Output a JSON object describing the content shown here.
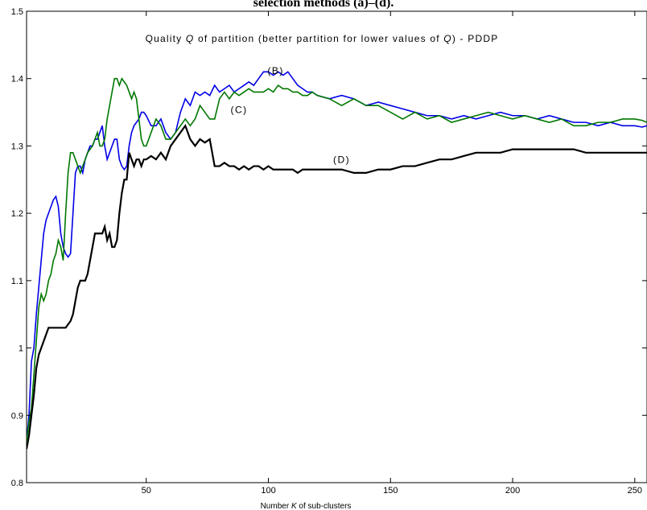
{
  "caption": "selection methods (a)–(d).",
  "chart_data": {
    "type": "line",
    "title_parts": [
      "Quality ",
      "Q",
      " of partition (better partition for lower values of ",
      "Q",
      ") - PDDP"
    ],
    "xlabel_parts": [
      "Number ",
      "K",
      " of sub-clusters"
    ],
    "ylabel": "",
    "xlim": [
      1,
      255
    ],
    "ylim": [
      0.8,
      1.5
    ],
    "xticks": [
      50,
      100,
      150,
      200,
      250
    ],
    "yticks": [
      0.8,
      0.9,
      1,
      1.1,
      1.2,
      1.3,
      1.4,
      1.5
    ],
    "ytick_labels": [
      "0.8",
      "0.9",
      "1",
      "1.1",
      "1.2",
      "1.3",
      "1.4",
      "1.5"
    ],
    "grid": false,
    "series": [
      {
        "name": "(B)",
        "color": "#0000e6",
        "width": 1.6,
        "x": [
          1,
          2,
          3,
          4,
          5,
          6,
          7,
          8,
          9,
          10,
          11,
          12,
          13,
          14,
          15,
          16,
          17,
          18,
          19,
          20,
          21,
          22,
          23,
          24,
          25,
          26,
          27,
          28,
          29,
          30,
          31,
          32,
          33,
          34,
          35,
          36,
          37,
          38,
          39,
          40,
          41,
          42,
          43,
          44,
          45,
          46,
          47,
          48,
          49,
          50,
          52,
          54,
          56,
          58,
          60,
          62,
          64,
          66,
          68,
          70,
          72,
          74,
          76,
          78,
          80,
          82,
          84,
          86,
          88,
          90,
          92,
          94,
          96,
          98,
          100,
          102,
          104,
          106,
          108,
          110,
          112,
          114,
          116,
          118,
          120,
          125,
          130,
          135,
          140,
          145,
          150,
          155,
          160,
          165,
          170,
          175,
          180,
          185,
          190,
          195,
          200,
          205,
          210,
          215,
          220,
          225,
          230,
          235,
          240,
          245,
          250,
          253,
          255
        ],
        "y": [
          0.86,
          0.9,
          0.98,
          1.0,
          1.05,
          1.09,
          1.13,
          1.17,
          1.19,
          1.2,
          1.21,
          1.22,
          1.225,
          1.21,
          1.17,
          1.15,
          1.14,
          1.135,
          1.14,
          1.2,
          1.26,
          1.27,
          1.27,
          1.26,
          1.28,
          1.29,
          1.3,
          1.3,
          1.31,
          1.31,
          1.32,
          1.33,
          1.3,
          1.28,
          1.29,
          1.3,
          1.31,
          1.31,
          1.28,
          1.27,
          1.265,
          1.27,
          1.3,
          1.32,
          1.33,
          1.335,
          1.34,
          1.35,
          1.35,
          1.345,
          1.33,
          1.33,
          1.34,
          1.32,
          1.31,
          1.32,
          1.35,
          1.37,
          1.36,
          1.38,
          1.375,
          1.38,
          1.375,
          1.39,
          1.38,
          1.385,
          1.39,
          1.38,
          1.385,
          1.39,
          1.395,
          1.39,
          1.4,
          1.41,
          1.41,
          1.405,
          1.41,
          1.405,
          1.41,
          1.4,
          1.39,
          1.385,
          1.38,
          1.38,
          1.375,
          1.37,
          1.375,
          1.37,
          1.36,
          1.365,
          1.36,
          1.355,
          1.35,
          1.345,
          1.345,
          1.34,
          1.345,
          1.34,
          1.345,
          1.35,
          1.345,
          1.345,
          1.34,
          1.345,
          1.34,
          1.335,
          1.335,
          1.33,
          1.335,
          1.33,
          1.33,
          1.328,
          1.33
        ]
      },
      {
        "name": "(C)",
        "color": "#007800",
        "width": 1.6,
        "x": [
          1,
          2,
          3,
          4,
          5,
          6,
          7,
          8,
          9,
          10,
          11,
          12,
          13,
          14,
          15,
          16,
          17,
          18,
          19,
          20,
          21,
          22,
          23,
          24,
          25,
          26,
          27,
          28,
          29,
          30,
          31,
          32,
          33,
          34,
          35,
          36,
          37,
          38,
          39,
          40,
          41,
          42,
          43,
          44,
          45,
          46,
          47,
          48,
          49,
          50,
          52,
          54,
          56,
          58,
          60,
          62,
          64,
          66,
          68,
          70,
          72,
          74,
          76,
          78,
          80,
          82,
          84,
          86,
          88,
          90,
          92,
          94,
          96,
          98,
          100,
          102,
          104,
          106,
          108,
          110,
          112,
          114,
          116,
          118,
          120,
          125,
          130,
          135,
          140,
          145,
          150,
          155,
          160,
          165,
          170,
          175,
          180,
          185,
          190,
          195,
          200,
          205,
          210,
          215,
          220,
          225,
          230,
          235,
          240,
          245,
          250,
          253,
          255
        ],
        "y": [
          0.86,
          0.89,
          0.91,
          0.96,
          1.01,
          1.06,
          1.08,
          1.07,
          1.08,
          1.1,
          1.11,
          1.13,
          1.14,
          1.16,
          1.15,
          1.13,
          1.2,
          1.26,
          1.29,
          1.29,
          1.28,
          1.27,
          1.26,
          1.27,
          1.28,
          1.29,
          1.295,
          1.3,
          1.31,
          1.32,
          1.3,
          1.3,
          1.31,
          1.34,
          1.36,
          1.38,
          1.4,
          1.4,
          1.39,
          1.4,
          1.395,
          1.39,
          1.38,
          1.37,
          1.38,
          1.37,
          1.34,
          1.31,
          1.3,
          1.3,
          1.32,
          1.34,
          1.33,
          1.31,
          1.31,
          1.32,
          1.33,
          1.34,
          1.33,
          1.34,
          1.36,
          1.35,
          1.34,
          1.34,
          1.37,
          1.38,
          1.37,
          1.38,
          1.375,
          1.38,
          1.385,
          1.38,
          1.38,
          1.38,
          1.385,
          1.38,
          1.39,
          1.385,
          1.385,
          1.38,
          1.38,
          1.375,
          1.375,
          1.38,
          1.375,
          1.37,
          1.36,
          1.37,
          1.36,
          1.36,
          1.35,
          1.34,
          1.35,
          1.34,
          1.345,
          1.335,
          1.34,
          1.345,
          1.35,
          1.345,
          1.34,
          1.345,
          1.34,
          1.335,
          1.34,
          1.33,
          1.33,
          1.335,
          1.335,
          1.34,
          1.34,
          1.338,
          1.335
        ]
      },
      {
        "name": "(D)",
        "color": "#000000",
        "width": 2.2,
        "x": [
          1,
          2,
          3,
          4,
          5,
          6,
          7,
          8,
          9,
          10,
          11,
          12,
          13,
          14,
          15,
          16,
          17,
          18,
          19,
          20,
          21,
          22,
          23,
          24,
          25,
          26,
          27,
          28,
          29,
          30,
          31,
          32,
          33,
          34,
          35,
          36,
          37,
          38,
          39,
          40,
          41,
          42,
          43,
          44,
          45,
          46,
          47,
          48,
          49,
          50,
          52,
          54,
          56,
          58,
          60,
          62,
          64,
          66,
          68,
          70,
          72,
          74,
          76,
          78,
          80,
          82,
          84,
          86,
          88,
          90,
          92,
          94,
          96,
          98,
          100,
          102,
          104,
          106,
          108,
          110,
          112,
          114,
          116,
          118,
          120,
          125,
          130,
          135,
          140,
          145,
          150,
          155,
          160,
          165,
          170,
          175,
          180,
          185,
          190,
          195,
          200,
          205,
          210,
          215,
          220,
          225,
          230,
          235,
          240,
          245,
          250,
          253,
          255
        ],
        "y": [
          0.85,
          0.87,
          0.9,
          0.93,
          0.97,
          0.99,
          1.0,
          1.01,
          1.02,
          1.03,
          1.03,
          1.03,
          1.03,
          1.03,
          1.03,
          1.03,
          1.03,
          1.035,
          1.04,
          1.05,
          1.07,
          1.09,
          1.1,
          1.1,
          1.1,
          1.11,
          1.13,
          1.15,
          1.17,
          1.17,
          1.17,
          1.17,
          1.18,
          1.16,
          1.17,
          1.15,
          1.15,
          1.16,
          1.2,
          1.23,
          1.25,
          1.25,
          1.29,
          1.28,
          1.27,
          1.28,
          1.28,
          1.27,
          1.28,
          1.28,
          1.285,
          1.28,
          1.29,
          1.28,
          1.3,
          1.31,
          1.32,
          1.33,
          1.31,
          1.3,
          1.31,
          1.305,
          1.31,
          1.27,
          1.27,
          1.275,
          1.27,
          1.27,
          1.265,
          1.27,
          1.265,
          1.27,
          1.27,
          1.265,
          1.27,
          1.265,
          1.265,
          1.265,
          1.265,
          1.265,
          1.26,
          1.265,
          1.265,
          1.265,
          1.265,
          1.265,
          1.265,
          1.26,
          1.26,
          1.265,
          1.265,
          1.27,
          1.27,
          1.275,
          1.28,
          1.28,
          1.285,
          1.29,
          1.29,
          1.29,
          1.295,
          1.295,
          1.295,
          1.295,
          1.295,
          1.295,
          1.29,
          1.29,
          1.29,
          1.29,
          1.29,
          1.29,
          1.29
        ]
      }
    ],
    "annotations": [
      {
        "text": "(B)",
        "x": 103,
        "y": 1.407
      },
      {
        "text": "(C)",
        "x": 88,
        "y": 1.349
      },
      {
        "text": "(D)",
        "x": 130,
        "y": 1.275
      }
    ]
  }
}
